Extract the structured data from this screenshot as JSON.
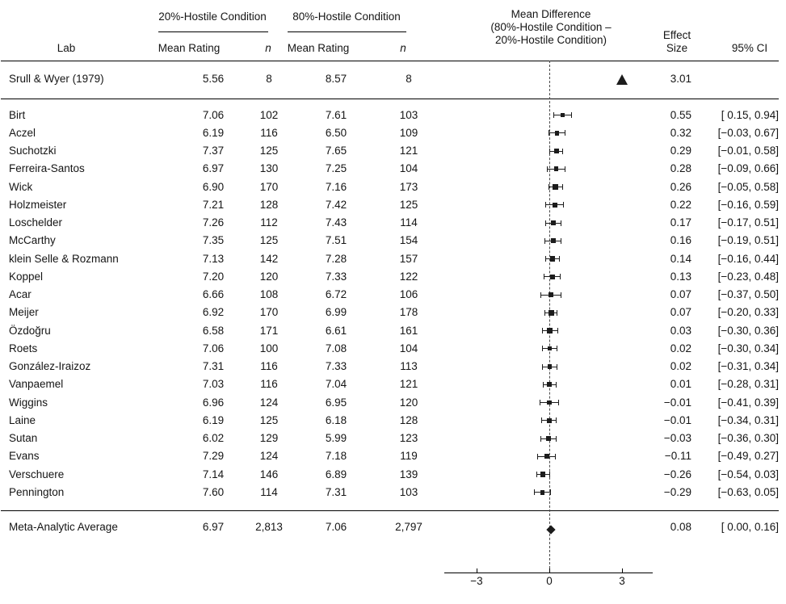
{
  "chart_data": {
    "type": "forest",
    "title": "",
    "xlabel": "Mean Difference (80%-Hostile Condition − 20%-Hostile Condition)",
    "xlim": [
      -4.3,
      4.2
    ],
    "reference_line": 0,
    "grid": "off",
    "legend": "none",
    "header": {
      "lab": "Lab",
      "group1": "20%-Hostile Condition",
      "group2": "80%-Hostile Condition",
      "mean_rating": "Mean Rating",
      "n": "n",
      "mean_diff_line1": "Mean Difference",
      "mean_diff_line2": "(80%-Hostile Condition –",
      "mean_diff_line3": "20%-Hostile Condition)",
      "effect_line1": "Effect",
      "effect_line2": "Size",
      "ci": "95% CI"
    },
    "axis": {
      "tick_values": [
        -3,
        0,
        3
      ],
      "tick_labels": [
        "−3",
        "0",
        "3"
      ]
    },
    "original_study": {
      "lab": "Srull & Wyer (1979)",
      "m20": "5.56",
      "n20": "8",
      "m80": "8.57",
      "n80": "8",
      "es": 3.01,
      "es_label": "3.01",
      "ci_label": "",
      "marker": "triangle"
    },
    "labs": [
      {
        "lab": "Birt",
        "m20": "7.06",
        "n20": 102,
        "m80": "7.61",
        "n80": 103,
        "es": 0.55,
        "ci": [
          0.15,
          0.94
        ],
        "es_label": "0.55",
        "ci_label": "[ 0.15, 0.94]"
      },
      {
        "lab": "Aczel",
        "m20": "6.19",
        "n20": 116,
        "m80": "6.50",
        "n80": 109,
        "es": 0.32,
        "ci": [
          -0.03,
          0.67
        ],
        "es_label": "0.32",
        "ci_label": "[−0.03, 0.67]"
      },
      {
        "lab": "Suchotzki",
        "m20": "7.37",
        "n20": 125,
        "m80": "7.65",
        "n80": 121,
        "es": 0.29,
        "ci": [
          -0.01,
          0.58
        ],
        "es_label": "0.29",
        "ci_label": "[−0.01, 0.58]"
      },
      {
        "lab": "Ferreira-Santos",
        "m20": "6.97",
        "n20": 130,
        "m80": "7.25",
        "n80": 104,
        "es": 0.28,
        "ci": [
          -0.09,
          0.66
        ],
        "es_label": "0.28",
        "ci_label": "[−0.09, 0.66]"
      },
      {
        "lab": "Wick",
        "m20": "6.90",
        "n20": 170,
        "m80": "7.16",
        "n80": 173,
        "es": 0.26,
        "ci": [
          -0.05,
          0.58
        ],
        "es_label": "0.26",
        "ci_label": "[−0.05, 0.58]"
      },
      {
        "lab": "Holzmeister",
        "m20": "7.21",
        "n20": 128,
        "m80": "7.42",
        "n80": 125,
        "es": 0.22,
        "ci": [
          -0.16,
          0.59
        ],
        "es_label": "0.22",
        "ci_label": "[−0.16, 0.59]"
      },
      {
        "lab": "Loschelder",
        "m20": "7.26",
        "n20": 112,
        "m80": "7.43",
        "n80": 114,
        "es": 0.17,
        "ci": [
          -0.17,
          0.51
        ],
        "es_label": "0.17",
        "ci_label": "[−0.17, 0.51]"
      },
      {
        "lab": "McCarthy",
        "m20": "7.35",
        "n20": 125,
        "m80": "7.51",
        "n80": 154,
        "es": 0.16,
        "ci": [
          -0.19,
          0.51
        ],
        "es_label": "0.16",
        "ci_label": "[−0.19, 0.51]"
      },
      {
        "lab": "klein Selle & Rozmann",
        "m20": "7.13",
        "n20": 142,
        "m80": "7.28",
        "n80": 157,
        "es": 0.14,
        "ci": [
          -0.16,
          0.44
        ],
        "es_label": "0.14",
        "ci_label": "[−0.16, 0.44]"
      },
      {
        "lab": "Koppel",
        "m20": "7.20",
        "n20": 120,
        "m80": "7.33",
        "n80": 122,
        "es": 0.13,
        "ci": [
          -0.23,
          0.48
        ],
        "es_label": "0.13",
        "ci_label": "[−0.23, 0.48]"
      },
      {
        "lab": "Acar",
        "m20": "6.66",
        "n20": 108,
        "m80": "6.72",
        "n80": 106,
        "es": 0.07,
        "ci": [
          -0.37,
          0.5
        ],
        "es_label": "0.07",
        "ci_label": "[−0.37, 0.50]"
      },
      {
        "lab": "Meijer",
        "m20": "6.92",
        "n20": 170,
        "m80": "6.99",
        "n80": 178,
        "es": 0.07,
        "ci": [
          -0.2,
          0.33
        ],
        "es_label": "0.07",
        "ci_label": "[−0.20, 0.33]"
      },
      {
        "lab": "Özdoğru",
        "m20": "6.58",
        "n20": 171,
        "m80": "6.61",
        "n80": 161,
        "es": 0.03,
        "ci": [
          -0.3,
          0.36
        ],
        "es_label": "0.03",
        "ci_label": "[−0.30, 0.36]"
      },
      {
        "lab": "Roets",
        "m20": "7.06",
        "n20": 100,
        "m80": "7.08",
        "n80": 104,
        "es": 0.02,
        "ci": [
          -0.3,
          0.34
        ],
        "es_label": "0.02",
        "ci_label": "[−0.30, 0.34]"
      },
      {
        "lab": "González-Iraizoz",
        "m20": "7.31",
        "n20": 116,
        "m80": "7.33",
        "n80": 113,
        "es": 0.02,
        "ci": [
          -0.31,
          0.34
        ],
        "es_label": "0.02",
        "ci_label": "[−0.31, 0.34]"
      },
      {
        "lab": "Vanpaemel",
        "m20": "7.03",
        "n20": 116,
        "m80": "7.04",
        "n80": 121,
        "es": 0.01,
        "ci": [
          -0.28,
          0.31
        ],
        "es_label": "0.01",
        "ci_label": "[−0.28, 0.31]"
      },
      {
        "lab": "Wiggins",
        "m20": "6.96",
        "n20": 124,
        "m80": "6.95",
        "n80": 120,
        "es": -0.01,
        "ci": [
          -0.41,
          0.39
        ],
        "es_label": "−0.01",
        "ci_label": "[−0.41, 0.39]"
      },
      {
        "lab": "Laine",
        "m20": "6.19",
        "n20": 125,
        "m80": "6.18",
        "n80": 128,
        "es": -0.01,
        "ci": [
          -0.34,
          0.31
        ],
        "es_label": "−0.01",
        "ci_label": "[−0.34, 0.31]"
      },
      {
        "lab": "Sutan",
        "m20": "6.02",
        "n20": 129,
        "m80": "5.99",
        "n80": 123,
        "es": -0.03,
        "ci": [
          -0.36,
          0.3
        ],
        "es_label": "−0.03",
        "ci_label": "[−0.36, 0.30]"
      },
      {
        "lab": "Evans",
        "m20": "7.29",
        "n20": 124,
        "m80": "7.18",
        "n80": 119,
        "es": -0.11,
        "ci": [
          -0.49,
          0.27
        ],
        "es_label": "−0.11",
        "ci_label": "[−0.49, 0.27]"
      },
      {
        "lab": "Verschuere",
        "m20": "7.14",
        "n20": 146,
        "m80": "6.89",
        "n80": 139,
        "es": -0.26,
        "ci": [
          -0.54,
          0.03
        ],
        "es_label": "−0.26",
        "ci_label": "[−0.54, 0.03]"
      },
      {
        "lab": "Pennington",
        "m20": "7.60",
        "n20": 114,
        "m80": "7.31",
        "n80": 103,
        "es": -0.29,
        "ci": [
          -0.63,
          0.05
        ],
        "es_label": "−0.29",
        "ci_label": "[−0.63, 0.05]"
      }
    ],
    "summary": {
      "lab": "Meta-Analytic Average",
      "m20": "6.97",
      "n20": "2,813",
      "m80": "7.06",
      "n80": "2,797",
      "es": 0.08,
      "ci": [
        0.0,
        0.16
      ],
      "es_label": "0.08",
      "ci_label": "[ 0.00, 0.16]",
      "marker": "diamond"
    },
    "marker_color": "#1c1c1c"
  }
}
